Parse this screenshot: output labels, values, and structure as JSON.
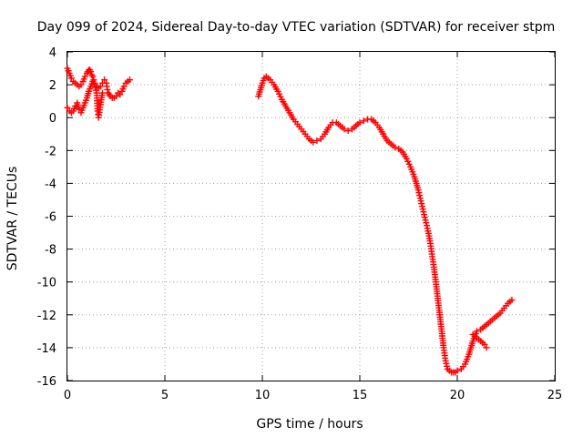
{
  "chart_data": {
    "type": "scatter",
    "title": "Day 099 of 2024, Sidereal Day-to-day VTEC variation (SDTVAR) for receiver stpm",
    "xlabel": "GPS time / hours",
    "ylabel": "SDTVAR / TECUs",
    "xlim": [
      0,
      25
    ],
    "ylim": [
      -16,
      4
    ],
    "xticks": [
      0,
      5,
      10,
      15,
      20,
      25
    ],
    "yticks": [
      4,
      2,
      0,
      -2,
      -4,
      -6,
      -8,
      -10,
      -12,
      -14,
      -16
    ],
    "grid": true,
    "marker": "plus",
    "color": "#ff0000",
    "series": [
      {
        "name": "segment-early-upper",
        "x": [
          0.0,
          0.1,
          0.2,
          0.3,
          0.4,
          0.5,
          0.6,
          0.7,
          0.8,
          0.9,
          1.0,
          1.05,
          1.1,
          1.15,
          1.2,
          1.25,
          1.3,
          1.35,
          1.4,
          1.5,
          1.6,
          1.7,
          1.8,
          1.9,
          2.0,
          2.05,
          2.1,
          2.15,
          2.2,
          2.3,
          2.4,
          2.5,
          2.6,
          2.7,
          2.8,
          2.9,
          3.0,
          3.1,
          3.2
        ],
        "y": [
          3.0,
          2.7,
          2.4,
          2.2,
          2.1,
          2.0,
          1.9,
          2.0,
          2.2,
          2.5,
          2.7,
          2.8,
          2.9,
          2.9,
          2.8,
          2.6,
          2.5,
          2.3,
          2.1,
          1.9,
          1.8,
          1.9,
          2.1,
          2.3,
          2.1,
          1.7,
          1.5,
          1.4,
          1.3,
          1.2,
          1.2,
          1.3,
          1.5,
          1.4,
          1.6,
          1.9,
          2.1,
          2.2,
          2.3
        ]
      },
      {
        "name": "segment-early-lower",
        "x": [
          0.0,
          0.1,
          0.2,
          0.3,
          0.4,
          0.5,
          0.6,
          0.7,
          0.8,
          0.9,
          1.0,
          1.1,
          1.2,
          1.3,
          1.4,
          1.5,
          1.55,
          1.6,
          1.7,
          1.8
        ],
        "y": [
          0.6,
          0.4,
          0.3,
          0.4,
          0.7,
          0.9,
          0.5,
          0.3,
          0.6,
          0.9,
          1.2,
          1.6,
          1.9,
          2.2,
          2.0,
          1.5,
          0.4,
          0.0,
          0.8,
          1.5
        ]
      },
      {
        "name": "segment-main",
        "x": [
          9.8,
          9.9,
          10.0,
          10.1,
          10.2,
          10.3,
          10.4,
          10.6,
          10.8,
          11.0,
          11.2,
          11.4,
          11.6,
          11.8,
          12.0,
          12.2,
          12.4,
          12.6,
          12.8,
          13.0,
          13.2,
          13.4,
          13.6,
          13.8,
          14.0,
          14.2,
          14.4,
          14.6,
          14.8,
          15.0,
          15.2,
          15.4,
          15.6,
          15.8,
          16.0,
          16.2,
          16.4,
          16.6,
          16.8,
          17.0,
          17.2,
          17.4,
          17.6,
          17.8,
          18.0,
          18.1,
          18.2,
          18.3,
          18.4,
          18.5,
          18.6,
          18.7,
          18.8,
          18.9,
          19.0,
          19.1,
          19.2,
          19.3,
          19.4,
          19.5,
          19.6,
          19.7,
          19.8,
          19.9,
          20.0,
          20.2,
          20.4,
          20.6,
          20.8,
          21.0,
          21.2,
          21.4,
          21.6,
          21.8,
          22.0,
          22.2,
          22.4,
          22.6,
          22.8
        ],
        "y": [
          1.3,
          1.7,
          2.1,
          2.4,
          2.5,
          2.4,
          2.3,
          2.0,
          1.6,
          1.1,
          0.7,
          0.3,
          -0.1,
          -0.4,
          -0.7,
          -1.0,
          -1.3,
          -1.5,
          -1.4,
          -1.3,
          -1.0,
          -0.6,
          -0.3,
          -0.3,
          -0.5,
          -0.7,
          -0.8,
          -0.7,
          -0.5,
          -0.3,
          -0.2,
          -0.1,
          -0.1,
          -0.3,
          -0.6,
          -1.0,
          -1.4,
          -1.6,
          -1.8,
          -1.9,
          -2.1,
          -2.5,
          -3.0,
          -3.6,
          -4.4,
          -4.9,
          -5.4,
          -5.9,
          -6.4,
          -6.9,
          -7.5,
          -8.3,
          -9.1,
          -10.0,
          -11.0,
          -12.0,
          -13.0,
          -14.0,
          -14.8,
          -15.3,
          -15.4,
          -15.5,
          -15.5,
          -15.5,
          -15.4,
          -15.3,
          -15.0,
          -14.4,
          -13.6,
          -13.0,
          -12.9,
          -12.7,
          -12.5,
          -12.3,
          -12.1,
          -11.9,
          -11.6,
          -11.3,
          -11.1
        ]
      },
      {
        "name": "segment-late-short",
        "x": [
          20.8,
          21.0,
          21.2,
          21.4,
          21.5
        ],
        "y": [
          -13.2,
          -13.4,
          -13.6,
          -13.8,
          -14.0
        ]
      }
    ]
  }
}
